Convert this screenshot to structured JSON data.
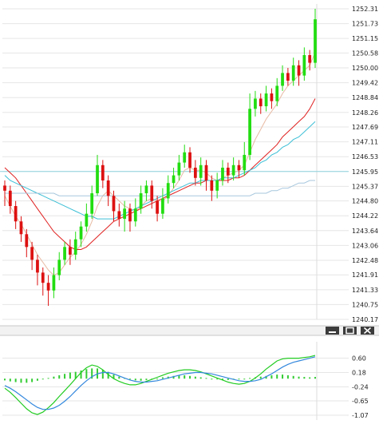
{
  "chart_data": [
    {
      "type": "candlestick",
      "panel": "price",
      "title": "",
      "ylim": [
        1240.17,
        1252.31
      ],
      "y_ticks": [
        "1252.31",
        "1251.73",
        "1251.15",
        "1250.58",
        "1250.00",
        "1249.42",
        "1248.84",
        "1248.26",
        "1247.69",
        "1247.11",
        "1246.53",
        "1245.95",
        "1245.37",
        "1244.80",
        "1244.22",
        "1243.64",
        "1243.06",
        "1242.48",
        "1241.91",
        "1241.33",
        "1240.75",
        "1240.17"
      ],
      "grid": true,
      "horizontal_line": 1245.95,
      "series": [
        {
          "name": "",
          "kind": "candles",
          "values": [
            [
              1245.4,
              1245.2,
              1245.6,
              1244.6
            ],
            [
              1245.2,
              1244.6,
              1245.4,
              1244.3
            ],
            [
              1244.6,
              1244.0,
              1244.8,
              1243.7
            ],
            [
              1244.0,
              1243.5,
              1244.2,
              1243.2
            ],
            [
              1243.5,
              1243.0,
              1243.7,
              1242.6
            ],
            [
              1243.0,
              1242.5,
              1243.2,
              1242.1
            ],
            [
              1242.5,
              1242.0,
              1242.7,
              1241.5
            ],
            [
              1242.0,
              1241.6,
              1242.2,
              1241.1
            ],
            [
              1241.6,
              1241.3,
              1241.9,
              1240.7
            ],
            [
              1241.3,
              1241.9,
              1242.2,
              1241.0
            ],
            [
              1241.9,
              1242.5,
              1242.8,
              1241.7
            ],
            [
              1242.5,
              1243.0,
              1243.2,
              1242.3
            ],
            [
              1243.0,
              1242.7,
              1243.3,
              1242.3
            ],
            [
              1242.7,
              1243.3,
              1243.6,
              1242.5
            ],
            [
              1243.3,
              1243.8,
              1244.0,
              1243.0
            ],
            [
              1243.8,
              1244.3,
              1244.7,
              1243.6
            ],
            [
              1244.3,
              1245.1,
              1245.4,
              1244.1
            ],
            [
              1245.1,
              1246.2,
              1246.6,
              1245.0
            ],
            [
              1246.2,
              1245.6,
              1246.4,
              1245.3
            ],
            [
              1245.6,
              1245.0,
              1245.8,
              1244.6
            ],
            [
              1245.0,
              1244.4,
              1245.2,
              1244.0
            ],
            [
              1244.4,
              1244.1,
              1244.7,
              1243.8
            ],
            [
              1244.1,
              1244.5,
              1244.8,
              1243.6
            ],
            [
              1244.5,
              1244.0,
              1244.7,
              1243.6
            ],
            [
              1244.0,
              1244.5,
              1244.9,
              1243.8
            ],
            [
              1244.5,
              1245.1,
              1245.4,
              1244.3
            ],
            [
              1245.1,
              1245.4,
              1245.6,
              1244.8
            ],
            [
              1245.4,
              1244.8,
              1245.6,
              1244.5
            ],
            [
              1244.8,
              1244.3,
              1245.0,
              1244.0
            ],
            [
              1244.3,
              1244.9,
              1245.3,
              1244.1
            ],
            [
              1244.9,
              1245.5,
              1245.8,
              1244.7
            ],
            [
              1245.5,
              1245.8,
              1246.1,
              1245.3
            ],
            [
              1245.8,
              1246.3,
              1246.6,
              1245.6
            ],
            [
              1246.3,
              1246.7,
              1247.0,
              1246.1
            ],
            [
              1246.7,
              1246.1,
              1246.9,
              1245.9
            ],
            [
              1246.1,
              1245.7,
              1246.4,
              1245.4
            ],
            [
              1245.7,
              1246.2,
              1246.5,
              1245.4
            ],
            [
              1246.2,
              1245.6,
              1246.4,
              1245.2
            ],
            [
              1245.6,
              1245.2,
              1245.8,
              1244.8
            ],
            [
              1245.2,
              1245.6,
              1245.9,
              1244.9
            ],
            [
              1245.6,
              1246.1,
              1246.4,
              1245.4
            ],
            [
              1246.1,
              1245.8,
              1246.3,
              1245.5
            ],
            [
              1245.8,
              1246.2,
              1246.5,
              1245.6
            ],
            [
              1246.2,
              1246.0,
              1246.4,
              1245.7
            ],
            [
              1246.0,
              1246.6,
              1247.1,
              1245.8
            ],
            [
              1246.6,
              1248.4,
              1249.0,
              1246.4
            ],
            [
              1248.4,
              1248.8,
              1249.1,
              1248.1
            ],
            [
              1248.8,
              1248.5,
              1249.0,
              1248.2
            ],
            [
              1248.5,
              1249.0,
              1249.3,
              1248.3
            ],
            [
              1249.0,
              1248.7,
              1249.2,
              1248.4
            ],
            [
              1248.7,
              1249.3,
              1249.6,
              1248.5
            ],
            [
              1249.3,
              1249.8,
              1250.1,
              1249.1
            ],
            [
              1249.8,
              1249.5,
              1250.0,
              1249.3
            ],
            [
              1249.5,
              1250.1,
              1250.4,
              1249.3
            ],
            [
              1250.1,
              1249.7,
              1250.3,
              1249.3
            ],
            [
              1249.7,
              1250.5,
              1250.8,
              1249.5
            ],
            [
              1250.5,
              1250.2,
              1250.7,
              1249.9
            ],
            [
              1250.2,
              1251.9,
              1252.31,
              1250.0
            ]
          ]
        },
        {
          "name": "",
          "kind": "ma_fast",
          "color": "#e7b9a2",
          "values": [
            1245.0,
            1244.6,
            1244.2,
            1243.9,
            1243.5,
            1243.1,
            1242.7,
            1242.4,
            1242.1,
            1241.9,
            1242.0,
            1242.3,
            1242.6,
            1242.8,
            1243.1,
            1243.5,
            1244.0,
            1244.6,
            1245.0,
            1245.2,
            1245.0,
            1244.8,
            1244.6,
            1244.5,
            1244.4,
            1244.6,
            1244.8,
            1244.9,
            1244.8,
            1244.8,
            1245.0,
            1245.3,
            1245.6,
            1246.0,
            1246.1,
            1246.0,
            1246.0,
            1245.9,
            1245.7,
            1245.6,
            1245.7,
            1245.8,
            1245.9,
            1246.0,
            1246.2,
            1246.7,
            1247.2,
            1247.6,
            1248.0,
            1248.3,
            1248.6,
            1249.0,
            1249.3,
            1249.5,
            1249.7,
            1249.9,
            1250.1,
            1250.6
          ]
        },
        {
          "name": "",
          "kind": "ma_slow",
          "color": "#e02020",
          "values": [
            1246.1,
            1245.9,
            1245.7,
            1245.4,
            1245.1,
            1244.8,
            1244.5,
            1244.2,
            1243.9,
            1243.6,
            1243.4,
            1243.2,
            1243.0,
            1242.9,
            1242.9,
            1243.0,
            1243.2,
            1243.4,
            1243.6,
            1243.8,
            1244.0,
            1244.1,
            1244.2,
            1244.3,
            1244.4,
            1244.5,
            1244.6,
            1244.7,
            1244.8,
            1244.9,
            1245.0,
            1245.1,
            1245.2,
            1245.3,
            1245.4,
            1245.5,
            1245.5,
            1245.6,
            1245.6,
            1245.6,
            1245.6,
            1245.6,
            1245.7,
            1245.7,
            1245.8,
            1246.0,
            1246.2,
            1246.4,
            1246.6,
            1246.8,
            1247.0,
            1247.3,
            1247.5,
            1247.7,
            1247.9,
            1248.1,
            1248.4,
            1248.8
          ]
        },
        {
          "name": "",
          "kind": "ma_longer",
          "color": "#3cbfd6",
          "values": [
            1245.8,
            1245.6,
            1245.5,
            1245.4,
            1245.3,
            1245.2,
            1245.1,
            1245.0,
            1244.9,
            1244.8,
            1244.7,
            1244.6,
            1244.5,
            1244.4,
            1244.3,
            1244.2,
            1244.2,
            1244.1,
            1244.1,
            1244.1,
            1244.1,
            1244.2,
            1244.3,
            1244.4,
            1244.5,
            1244.6,
            1244.7,
            1244.8,
            1244.9,
            1245.0,
            1245.1,
            1245.2,
            1245.3,
            1245.4,
            1245.5,
            1245.5,
            1245.6,
            1245.6,
            1245.6,
            1245.6,
            1245.7,
            1245.7,
            1245.7,
            1245.8,
            1245.9,
            1246.0,
            1246.1,
            1246.3,
            1246.4,
            1246.6,
            1246.7,
            1246.9,
            1247.0,
            1247.2,
            1247.3,
            1247.5,
            1247.7,
            1247.9
          ]
        },
        {
          "name": "",
          "kind": "ma_longest",
          "color": "#a7c7de",
          "values": [
            1245.1,
            1245.1,
            1245.1,
            1245.1,
            1245.1,
            1245.1,
            1245.1,
            1245.1,
            1245.1,
            1245.1,
            1245.0,
            1245.0,
            1245.0,
            1245.0,
            1245.0,
            1245.0,
            1245.0,
            1245.0,
            1245.0,
            1245.0,
            1245.0,
            1245.0,
            1245.0,
            1245.0,
            1245.0,
            1245.0,
            1245.0,
            1245.0,
            1245.0,
            1245.0,
            1245.0,
            1245.0,
            1245.0,
            1245.0,
            1245.0,
            1245.0,
            1245.0,
            1245.0,
            1245.0,
            1245.0,
            1245.0,
            1245.0,
            1245.0,
            1245.0,
            1245.0,
            1245.0,
            1245.1,
            1245.1,
            1245.1,
            1245.2,
            1245.2,
            1245.3,
            1245.3,
            1245.4,
            1245.5,
            1245.5,
            1245.6,
            1245.6
          ]
        }
      ]
    },
    {
      "type": "macd",
      "panel": "indicator",
      "ylim": [
        -1.07,
        0.8
      ],
      "y_ticks": [
        "0.60",
        "0.18",
        "-0.24",
        "-0.65",
        "-1.07"
      ],
      "series": [
        {
          "name": "",
          "kind": "histogram",
          "color": "#33cc33",
          "values": [
            -0.05,
            -0.08,
            -0.1,
            -0.12,
            -0.12,
            -0.1,
            -0.06,
            -0.02,
            0.02,
            0.06,
            0.1,
            0.14,
            0.18,
            0.2,
            0.24,
            0.28,
            0.3,
            0.3,
            0.26,
            0.2,
            0.12,
            0.06,
            0.02,
            -0.02,
            -0.05,
            -0.06,
            -0.04,
            -0.02,
            0.0,
            0.04,
            0.06,
            0.08,
            0.1,
            0.1,
            0.08,
            0.06,
            0.04,
            0.02,
            0.0,
            -0.02,
            -0.04,
            -0.04,
            -0.03,
            -0.02,
            -0.01,
            0.02,
            0.04,
            0.06,
            0.08,
            0.1,
            0.12,
            0.12,
            0.1,
            0.08,
            0.06,
            0.05,
            0.04,
            0.05
          ]
        },
        {
          "name": "",
          "kind": "macd_line",
          "color": "#22cc22",
          "values": [
            -0.28,
            -0.4,
            -0.55,
            -0.72,
            -0.88,
            -1.0,
            -1.05,
            -0.98,
            -0.85,
            -0.7,
            -0.52,
            -0.35,
            -0.18,
            0.0,
            0.18,
            0.32,
            0.4,
            0.36,
            0.26,
            0.12,
            0.0,
            -0.08,
            -0.14,
            -0.18,
            -0.18,
            -0.14,
            -0.08,
            -0.02,
            0.04,
            0.1,
            0.16,
            0.2,
            0.24,
            0.26,
            0.26,
            0.24,
            0.2,
            0.14,
            0.08,
            0.02,
            -0.04,
            -0.1,
            -0.14,
            -0.16,
            -0.14,
            -0.08,
            0.02,
            0.14,
            0.28,
            0.4,
            0.52,
            0.58,
            0.6,
            0.6,
            0.6,
            0.62,
            0.64,
            0.68
          ]
        },
        {
          "name": "",
          "kind": "signal_line",
          "color": "#3388dd",
          "values": [
            -0.2,
            -0.28,
            -0.38,
            -0.5,
            -0.62,
            -0.74,
            -0.84,
            -0.9,
            -0.9,
            -0.86,
            -0.78,
            -0.66,
            -0.52,
            -0.36,
            -0.2,
            -0.06,
            0.06,
            0.14,
            0.18,
            0.18,
            0.14,
            0.08,
            0.02,
            -0.04,
            -0.08,
            -0.1,
            -0.1,
            -0.08,
            -0.06,
            -0.02,
            0.02,
            0.06,
            0.1,
            0.14,
            0.16,
            0.18,
            0.18,
            0.16,
            0.14,
            0.1,
            0.06,
            0.02,
            -0.02,
            -0.06,
            -0.08,
            -0.08,
            -0.06,
            -0.02,
            0.06,
            0.14,
            0.24,
            0.34,
            0.42,
            0.48,
            0.52,
            0.56,
            0.6,
            0.64
          ]
        }
      ]
    }
  ],
  "colors": {
    "up_candle": "#22dd11",
    "down_candle": "#dd1111",
    "grid": "#e6e6e6",
    "axis_text": "#222222",
    "hline": "#8fd3e0",
    "panel_divider": "#c8c8c8",
    "window_button_bg": "#3c3c3c"
  },
  "window_controls": [
    {
      "name": "minimize",
      "icon": "minimize-icon"
    },
    {
      "name": "restore",
      "icon": "restore-icon"
    },
    {
      "name": "close",
      "icon": "close-icon"
    }
  ]
}
